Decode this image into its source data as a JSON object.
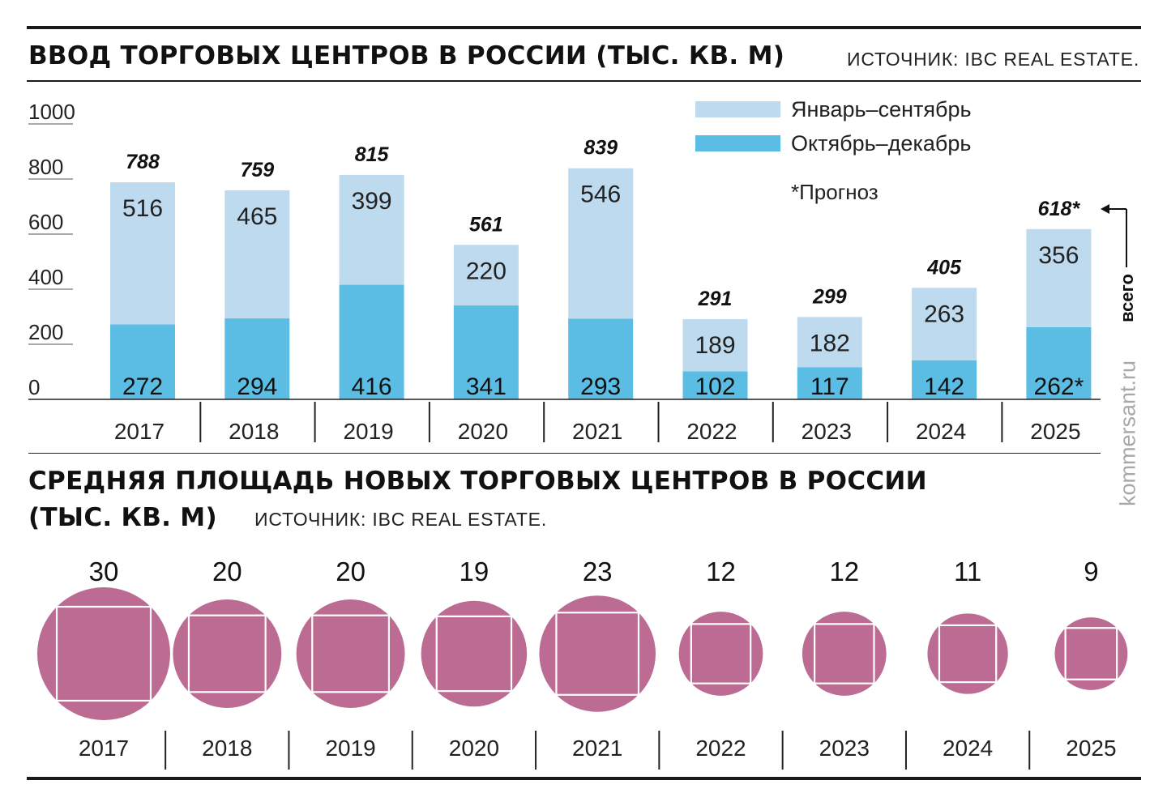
{
  "chart_data": [
    {
      "type": "bar",
      "stacked": true,
      "title": "ВВОД ТОРГОВЫХ ЦЕНТРОВ В РОССИИ (ТЫС. КВ. М)",
      "source": "ИСТОЧНИК: IBC REAL ESTATE.",
      "categories": [
        "2017",
        "2018",
        "2019",
        "2020",
        "2021",
        "2022",
        "2023",
        "2024",
        "2025"
      ],
      "series": [
        {
          "name": "Октябрь–декабрь",
          "color": "#5bbde3",
          "values": [
            272,
            294,
            416,
            341,
            293,
            102,
            117,
            142,
            262
          ],
          "labels": [
            "272",
            "294",
            "416",
            "341",
            "293",
            "102",
            "117",
            "142",
            "262*"
          ]
        },
        {
          "name": "Январь–сентябрь",
          "color": "#bedaee",
          "values": [
            516,
            465,
            399,
            220,
            546,
            189,
            182,
            263,
            356
          ],
          "labels": [
            "516",
            "465",
            "399",
            "220",
            "546",
            "189",
            "182",
            "263",
            "356"
          ]
        }
      ],
      "totals": [
        "788",
        "759",
        "815",
        "561",
        "839",
        "291",
        "299",
        "405",
        "618*"
      ],
      "yticks": [
        "0",
        "200",
        "400",
        "600",
        "800",
        "1000"
      ],
      "ylim": [
        0,
        1000
      ],
      "grid": false,
      "legend_position": "top-right",
      "footnote": "*Прогноз",
      "total_marker_label": "всего"
    },
    {
      "type": "bubble",
      "title": "СРЕДНЯЯ ПЛОЩАДЬ НОВЫХ ТОРГОВЫХ ЦЕНТРОВ В РОССИИ",
      "title_line2": "(ТЫС. КВ. М)",
      "source": "ИСТОЧНИК: IBC REAL ESTATE.",
      "categories": [
        "2017",
        "2018",
        "2019",
        "2020",
        "2021",
        "2022",
        "2023",
        "2024",
        "2025"
      ],
      "values": [
        30,
        20,
        20,
        19,
        23,
        12,
        12,
        11,
        9
      ],
      "color": "#bc6b93"
    }
  ],
  "watermark": "kommersant.ru"
}
